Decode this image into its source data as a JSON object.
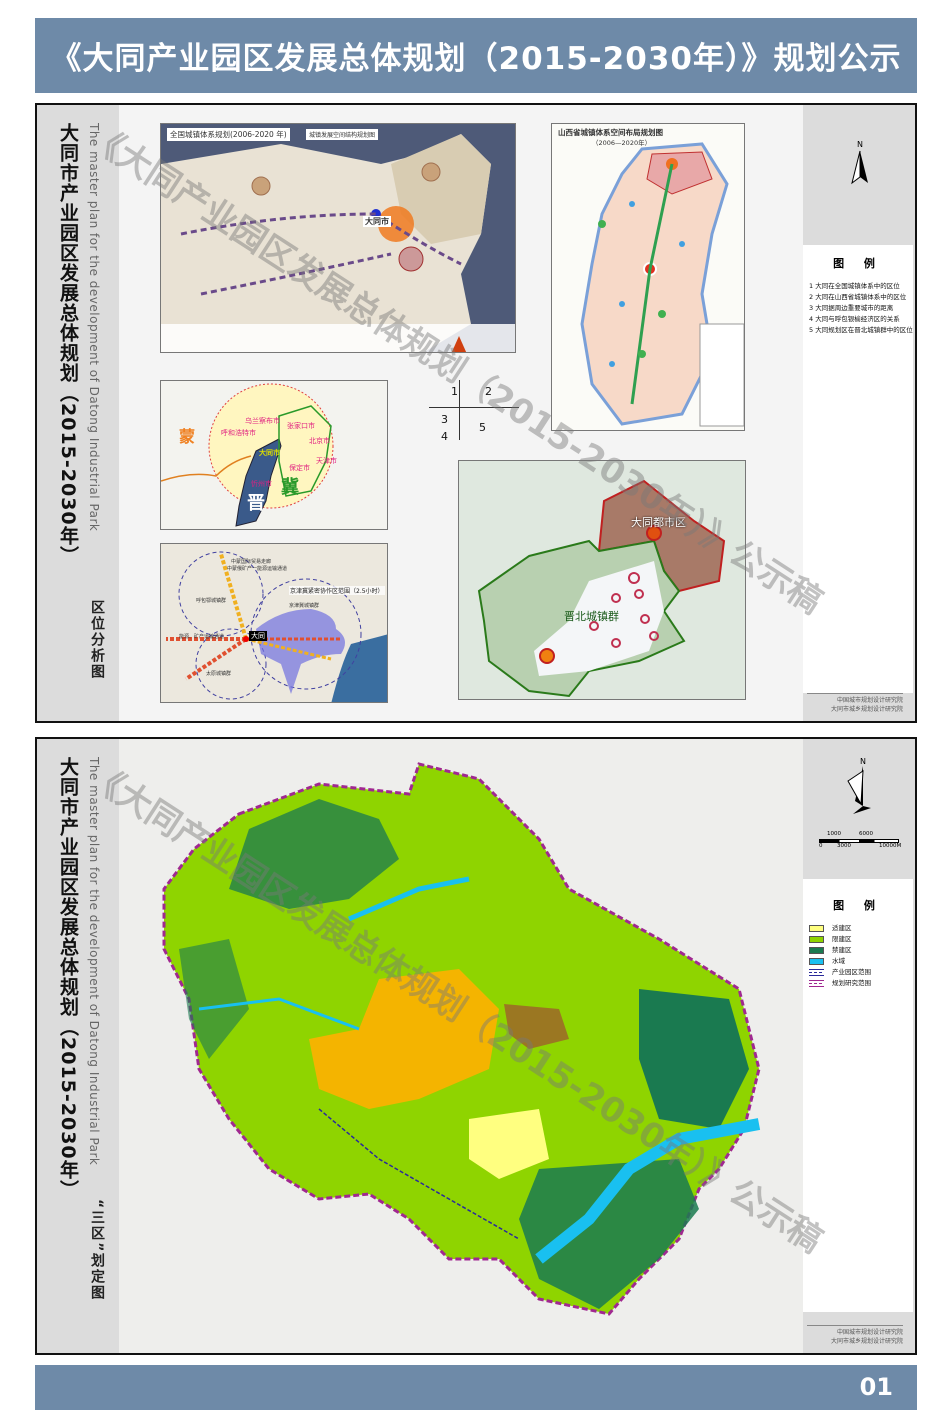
{
  "header": {
    "title": "《大同产业园区发展总体规划（2015-2030年）》规划公示"
  },
  "watermark": "《大同产业园区发展总体规划（2015-2030年）》公示稿",
  "panel1": {
    "title": "大同市产业园区发展总体规划（2015-2030年）",
    "title_en": "The master plan for the development of Datong Industrial Park",
    "subtitle": "区位分析图",
    "map1": {
      "title": "全国城镇体系规划(2006-2020 年)",
      "subtitle": "城镇发展空间结构规划图",
      "city": "大同市"
    },
    "map2": {
      "title": "山西省城镇体系空间布局规划图",
      "years": "（2006—2020年）"
    },
    "map3": {
      "meng": "蒙",
      "jin": "晋",
      "ji": "冀",
      "datong": "大同市",
      "cities": [
        "乌兰察布市",
        "呼和浩特市",
        "张家口市",
        "北京市",
        "天津市",
        "保定市",
        "忻州市"
      ]
    },
    "map4": {
      "datong": "大同",
      "labels": [
        "中蒙国际贸易走廊",
        "中蒙俄矿产一能源运输通道",
        "呼包鄂城镇群",
        "京津冀城镇群",
        "京津冀紧密协作区范围（2.5小时）",
        "能源、矿产运输通道",
        "太原城镇群"
      ]
    },
    "map5": {
      "metro": "大同都市区",
      "cluster": "晋北城镇群"
    },
    "index_numbers": [
      "1",
      "2",
      "3",
      "4",
      "5"
    ],
    "north": "N",
    "legend": {
      "title": "图 例",
      "items": [
        "1  大同在全国城镇体系中的区位",
        "2  大同在山西省城镇体系中的区位",
        "3  大同据周边重要城市的距离",
        "4  大同与呼包银榆经济区的关系",
        "5  大同规划区在晋北城镇群中的区位"
      ]
    },
    "credits": [
      "中国城市规划设计研究院",
      "大同市城乡规划设计研究院"
    ]
  },
  "panel2": {
    "title": "大同市产业园区发展总体规划（2015-2030年）",
    "title_en": "The master plan for the development of Datong Industrial Park",
    "subtitle": "“三区”划定图",
    "north": "N",
    "scale_top": [
      "1000",
      "6000"
    ],
    "scale_bottom": [
      "0",
      "3000",
      "10000M"
    ],
    "legend": {
      "title": "图 例",
      "items": [
        {
          "label": "适建区",
          "color": "#ffff80",
          "type": "fill"
        },
        {
          "label": "限建区",
          "color": "#8fd400",
          "type": "fill"
        },
        {
          "label": "禁建区",
          "color": "#1a7a50",
          "type": "fill"
        },
        {
          "label": "水域",
          "color": "#19c0f0",
          "type": "fill"
        },
        {
          "label": "产业园区范围",
          "color": "#2a2a9a",
          "type": "dash"
        },
        {
          "label": "规划研究范围",
          "color": "#a02890",
          "type": "dash"
        }
      ]
    },
    "credits": [
      "中国城市规划设计研究院",
      "大同市城乡规划设计研究院"
    ]
  },
  "footer": {
    "page": "01"
  }
}
